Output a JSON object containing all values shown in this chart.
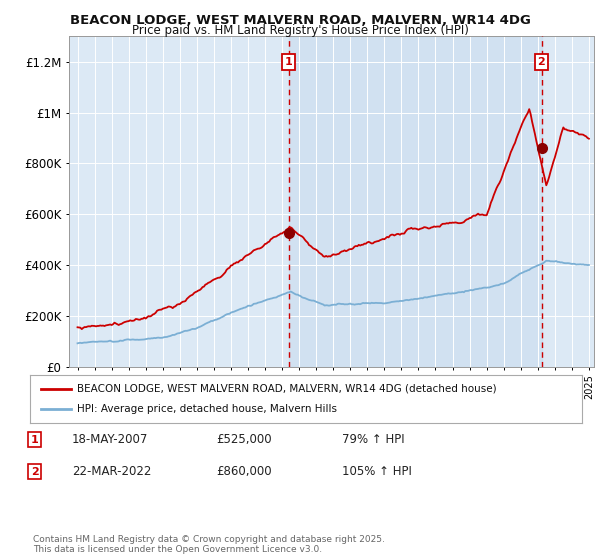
{
  "title": "BEACON LODGE, WEST MALVERN ROAD, MALVERN, WR14 4DG",
  "subtitle": "Price paid vs. HM Land Registry's House Price Index (HPI)",
  "fig_bg_color": "#ffffff",
  "plot_bg_color": "#dce9f5",
  "red_line_color": "#cc0000",
  "blue_line_color": "#7bafd4",
  "grid_color": "#c8d8e8",
  "ylim": [
    0,
    1300000
  ],
  "yticks": [
    0,
    200000,
    400000,
    600000,
    800000,
    1000000,
    1200000
  ],
  "ytick_labels": [
    "£0",
    "£200K",
    "£400K",
    "£600K",
    "£800K",
    "£1M",
    "£1.2M"
  ],
  "x_start_year": 1995,
  "x_end_year": 2025,
  "sale1_year": 2007.38,
  "sale1_price": 525000,
  "sale1_label": "1",
  "sale1_date": "18-MAY-2007",
  "sale1_pct": "79%",
  "sale2_year": 2022.22,
  "sale2_price": 860000,
  "sale2_label": "2",
  "sale2_date": "22-MAR-2022",
  "sale2_pct": "105%",
  "legend_red": "BEACON LODGE, WEST MALVERN ROAD, MALVERN, WR14 4DG (detached house)",
  "legend_blue": "HPI: Average price, detached house, Malvern Hills",
  "footnote": "Contains HM Land Registry data © Crown copyright and database right 2025.\nThis data is licensed under the Open Government Licence v3.0."
}
